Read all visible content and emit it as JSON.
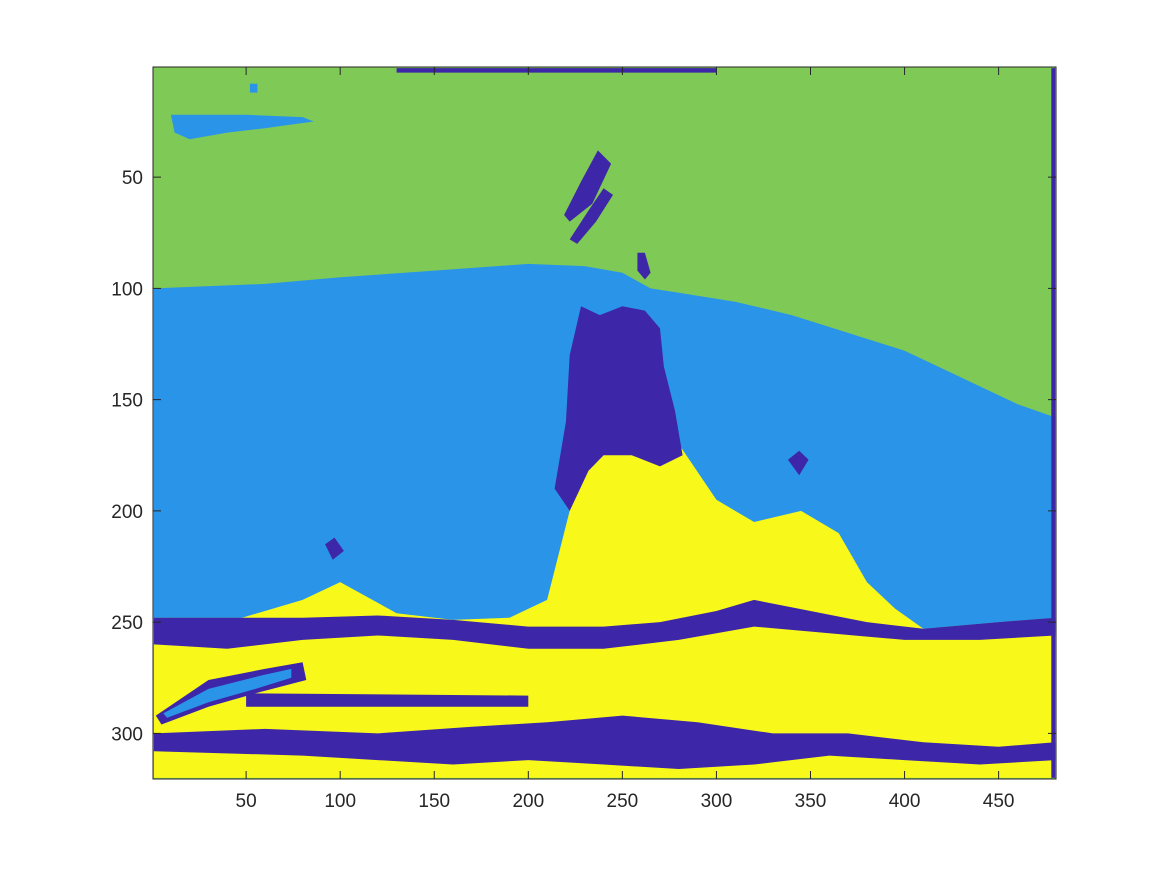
{
  "chart_data": {
    "type": "heatmap",
    "title": "",
    "xlabel": "",
    "ylabel": "",
    "xlim": [
      0.5,
      480.5
    ],
    "ylim": [
      0.5,
      320.5
    ],
    "y_direction": "reverse",
    "grid": false,
    "legend": "none",
    "x_ticks": [
      {
        "value": 50,
        "label": "50"
      },
      {
        "value": 100,
        "label": "100"
      },
      {
        "value": 150,
        "label": "150"
      },
      {
        "value": 200,
        "label": "200"
      },
      {
        "value": 250,
        "label": "250"
      },
      {
        "value": 300,
        "label": "300"
      },
      {
        "value": 350,
        "label": "350"
      },
      {
        "value": 400,
        "label": "400"
      },
      {
        "value": 450,
        "label": "450"
      }
    ],
    "y_ticks": [
      {
        "value": 50,
        "label": "50"
      },
      {
        "value": 100,
        "label": "100"
      },
      {
        "value": 150,
        "label": "150"
      },
      {
        "value": 200,
        "label": "200"
      },
      {
        "value": 250,
        "label": "250"
      },
      {
        "value": 300,
        "label": "300"
      }
    ],
    "classes": [
      {
        "id": 1,
        "color": "#3e26a8"
      },
      {
        "id": 2,
        "color": "#2a95e8"
      },
      {
        "id": 3,
        "color": "#7fca56"
      },
      {
        "id": 4,
        "color": "#f8f91a"
      }
    ],
    "regions": [
      {
        "class": 3,
        "description_id": "sky",
        "points": [
          [
            1,
            1
          ],
          [
            480,
            1
          ],
          [
            480,
            158
          ],
          [
            460,
            152
          ],
          [
            430,
            140
          ],
          [
            400,
            128
          ],
          [
            370,
            120
          ],
          [
            340,
            112
          ],
          [
            310,
            106
          ],
          [
            280,
            102
          ],
          [
            265,
            100
          ],
          [
            250,
            93
          ],
          [
            230,
            90
          ],
          [
            200,
            89
          ],
          [
            150,
            92
          ],
          [
            100,
            95
          ],
          [
            60,
            98
          ],
          [
            1,
            100
          ]
        ]
      },
      {
        "class": 2,
        "description_id": "water",
        "points": [
          [
            1,
            100
          ],
          [
            60,
            98
          ],
          [
            100,
            95
          ],
          [
            150,
            92
          ],
          [
            200,
            89
          ],
          [
            230,
            90
          ],
          [
            250,
            93
          ],
          [
            265,
            100
          ],
          [
            280,
            102
          ],
          [
            310,
            106
          ],
          [
            340,
            112
          ],
          [
            370,
            120
          ],
          [
            400,
            128
          ],
          [
            430,
            140
          ],
          [
            460,
            152
          ],
          [
            480,
            158
          ],
          [
            480,
            248
          ],
          [
            450,
            250
          ],
          [
            410,
            253
          ],
          [
            380,
            250
          ],
          [
            350,
            245
          ],
          [
            320,
            240
          ],
          [
            300,
            245
          ],
          [
            270,
            250
          ],
          [
            240,
            252
          ],
          [
            200,
            252
          ],
          [
            160,
            249
          ],
          [
            120,
            247
          ],
          [
            80,
            248
          ],
          [
            1,
            248
          ]
        ]
      },
      {
        "class": 4,
        "description_id": "ground",
        "points": [
          [
            1,
            252
          ],
          [
            40,
            250
          ],
          [
            80,
            240
          ],
          [
            100,
            232
          ],
          [
            130,
            246
          ],
          [
            160,
            249
          ],
          [
            190,
            248
          ],
          [
            210,
            240
          ],
          [
            225,
            190
          ],
          [
            240,
            172
          ],
          [
            262,
            168
          ],
          [
            280,
            170
          ],
          [
            300,
            195
          ],
          [
            320,
            205
          ],
          [
            345,
            200
          ],
          [
            365,
            210
          ],
          [
            380,
            232
          ],
          [
            395,
            244
          ],
          [
            410,
            253
          ],
          [
            440,
            252
          ],
          [
            480,
            254
          ],
          [
            480,
            320
          ],
          [
            1,
            320
          ]
        ]
      },
      {
        "class": 1,
        "description_id": "rock-face",
        "points": [
          [
            228,
            108
          ],
          [
            238,
            112
          ],
          [
            250,
            108
          ],
          [
            262,
            110
          ],
          [
            270,
            118
          ],
          [
            272,
            135
          ],
          [
            278,
            155
          ],
          [
            282,
            175
          ],
          [
            270,
            180
          ],
          [
            255,
            175
          ],
          [
            240,
            175
          ],
          [
            232,
            182
          ],
          [
            222,
            200
          ],
          [
            214,
            190
          ],
          [
            220,
            160
          ],
          [
            222,
            130
          ]
        ]
      },
      {
        "class": 1,
        "description_id": "shore-band",
        "points": [
          [
            1,
            248
          ],
          [
            80,
            248
          ],
          [
            120,
            247
          ],
          [
            160,
            249
          ],
          [
            200,
            252
          ],
          [
            240,
            252
          ],
          [
            270,
            250
          ],
          [
            300,
            245
          ],
          [
            320,
            240
          ],
          [
            350,
            245
          ],
          [
            380,
            250
          ],
          [
            410,
            253
          ],
          [
            450,
            250
          ],
          [
            480,
            248
          ],
          [
            480,
            256
          ],
          [
            440,
            258
          ],
          [
            400,
            258
          ],
          [
            360,
            255
          ],
          [
            320,
            252
          ],
          [
            280,
            258
          ],
          [
            240,
            262
          ],
          [
            200,
            262
          ],
          [
            160,
            258
          ],
          [
            120,
            256
          ],
          [
            80,
            258
          ],
          [
            40,
            262
          ],
          [
            1,
            260
          ]
        ]
      },
      {
        "class": 1,
        "description_id": "base-shadow",
        "points": [
          [
            1,
            300
          ],
          [
            60,
            298
          ],
          [
            120,
            300
          ],
          [
            170,
            297
          ],
          [
            210,
            295
          ],
          [
            250,
            292
          ],
          [
            290,
            295
          ],
          [
            330,
            300
          ],
          [
            370,
            300
          ],
          [
            410,
            304
          ],
          [
            450,
            306
          ],
          [
            480,
            304
          ],
          [
            480,
            312
          ],
          [
            440,
            314
          ],
          [
            400,
            312
          ],
          [
            360,
            310
          ],
          [
            320,
            314
          ],
          [
            280,
            316
          ],
          [
            240,
            314
          ],
          [
            200,
            312
          ],
          [
            160,
            314
          ],
          [
            120,
            312
          ],
          [
            80,
            310
          ],
          [
            1,
            308
          ]
        ]
      },
      {
        "class": 1,
        "description_id": "left-streak",
        "points": [
          [
            30,
            276
          ],
          [
            60,
            271
          ],
          [
            80,
            268
          ],
          [
            82,
            276
          ],
          [
            55,
            282
          ],
          [
            30,
            288
          ],
          [
            5,
            296
          ],
          [
            2,
            292
          ]
        ]
      },
      {
        "class": 2,
        "description_id": "left-streak-core",
        "points": [
          [
            30,
            280
          ],
          [
            58,
            274
          ],
          [
            74,
            271
          ],
          [
            74,
            275
          ],
          [
            55,
            280
          ],
          [
            30,
            286
          ],
          [
            8,
            293
          ],
          [
            6,
            291
          ]
        ]
      },
      {
        "class": 1,
        "description_id": "mid-dark-band",
        "points": [
          [
            50,
            282
          ],
          [
            200,
            283
          ],
          [
            200,
            288
          ],
          [
            50,
            288
          ]
        ]
      },
      {
        "class": 1,
        "description_id": "spire-streak-1",
        "points": [
          [
            237,
            38
          ],
          [
            244,
            44
          ],
          [
            234,
            62
          ],
          [
            222,
            70
          ],
          [
            219,
            67
          ],
          [
            228,
            52
          ]
        ]
      },
      {
        "class": 1,
        "description_id": "spire-streak-2",
        "points": [
          [
            240,
            55
          ],
          [
            245,
            58
          ],
          [
            236,
            70
          ],
          [
            226,
            80
          ],
          [
            222,
            78
          ],
          [
            232,
            65
          ]
        ]
      },
      {
        "class": 1,
        "description_id": "spire-streak-3",
        "points": [
          [
            258,
            84
          ],
          [
            262,
            84
          ],
          [
            265,
            93
          ],
          [
            262,
            96
          ],
          [
            258,
            92
          ]
        ]
      },
      {
        "class": 2,
        "description_id": "sky-streak",
        "points": [
          [
            10,
            22
          ],
          [
            50,
            22
          ],
          [
            80,
            23
          ],
          [
            86,
            25
          ],
          [
            60,
            28
          ],
          [
            40,
            30
          ],
          [
            20,
            33
          ],
          [
            12,
            30
          ]
        ]
      },
      {
        "class": 2,
        "description_id": "sky-dot",
        "points": [
          [
            52,
            8
          ],
          [
            56,
            8
          ],
          [
            56,
            12
          ],
          [
            52,
            12
          ]
        ]
      },
      {
        "class": 1,
        "description_id": "right-peak",
        "points": [
          [
            338,
            177
          ],
          [
            344,
            173
          ],
          [
            349,
            177
          ],
          [
            344,
            184
          ]
        ]
      },
      {
        "class": 1,
        "description_id": "left-peak",
        "points": [
          [
            92,
            215
          ],
          [
            97,
            212
          ],
          [
            102,
            218
          ],
          [
            96,
            222
          ]
        ]
      },
      {
        "class": 1,
        "description_id": "top-strip",
        "points": [
          [
            130,
            1
          ],
          [
            300,
            1
          ],
          [
            300,
            3
          ],
          [
            130,
            3
          ]
        ]
      },
      {
        "class": 1,
        "description_id": "right-edge-strip",
        "points": [
          [
            478,
            1
          ],
          [
            480,
            1
          ],
          [
            480,
            320
          ],
          [
            478,
            320
          ]
        ]
      }
    ]
  }
}
